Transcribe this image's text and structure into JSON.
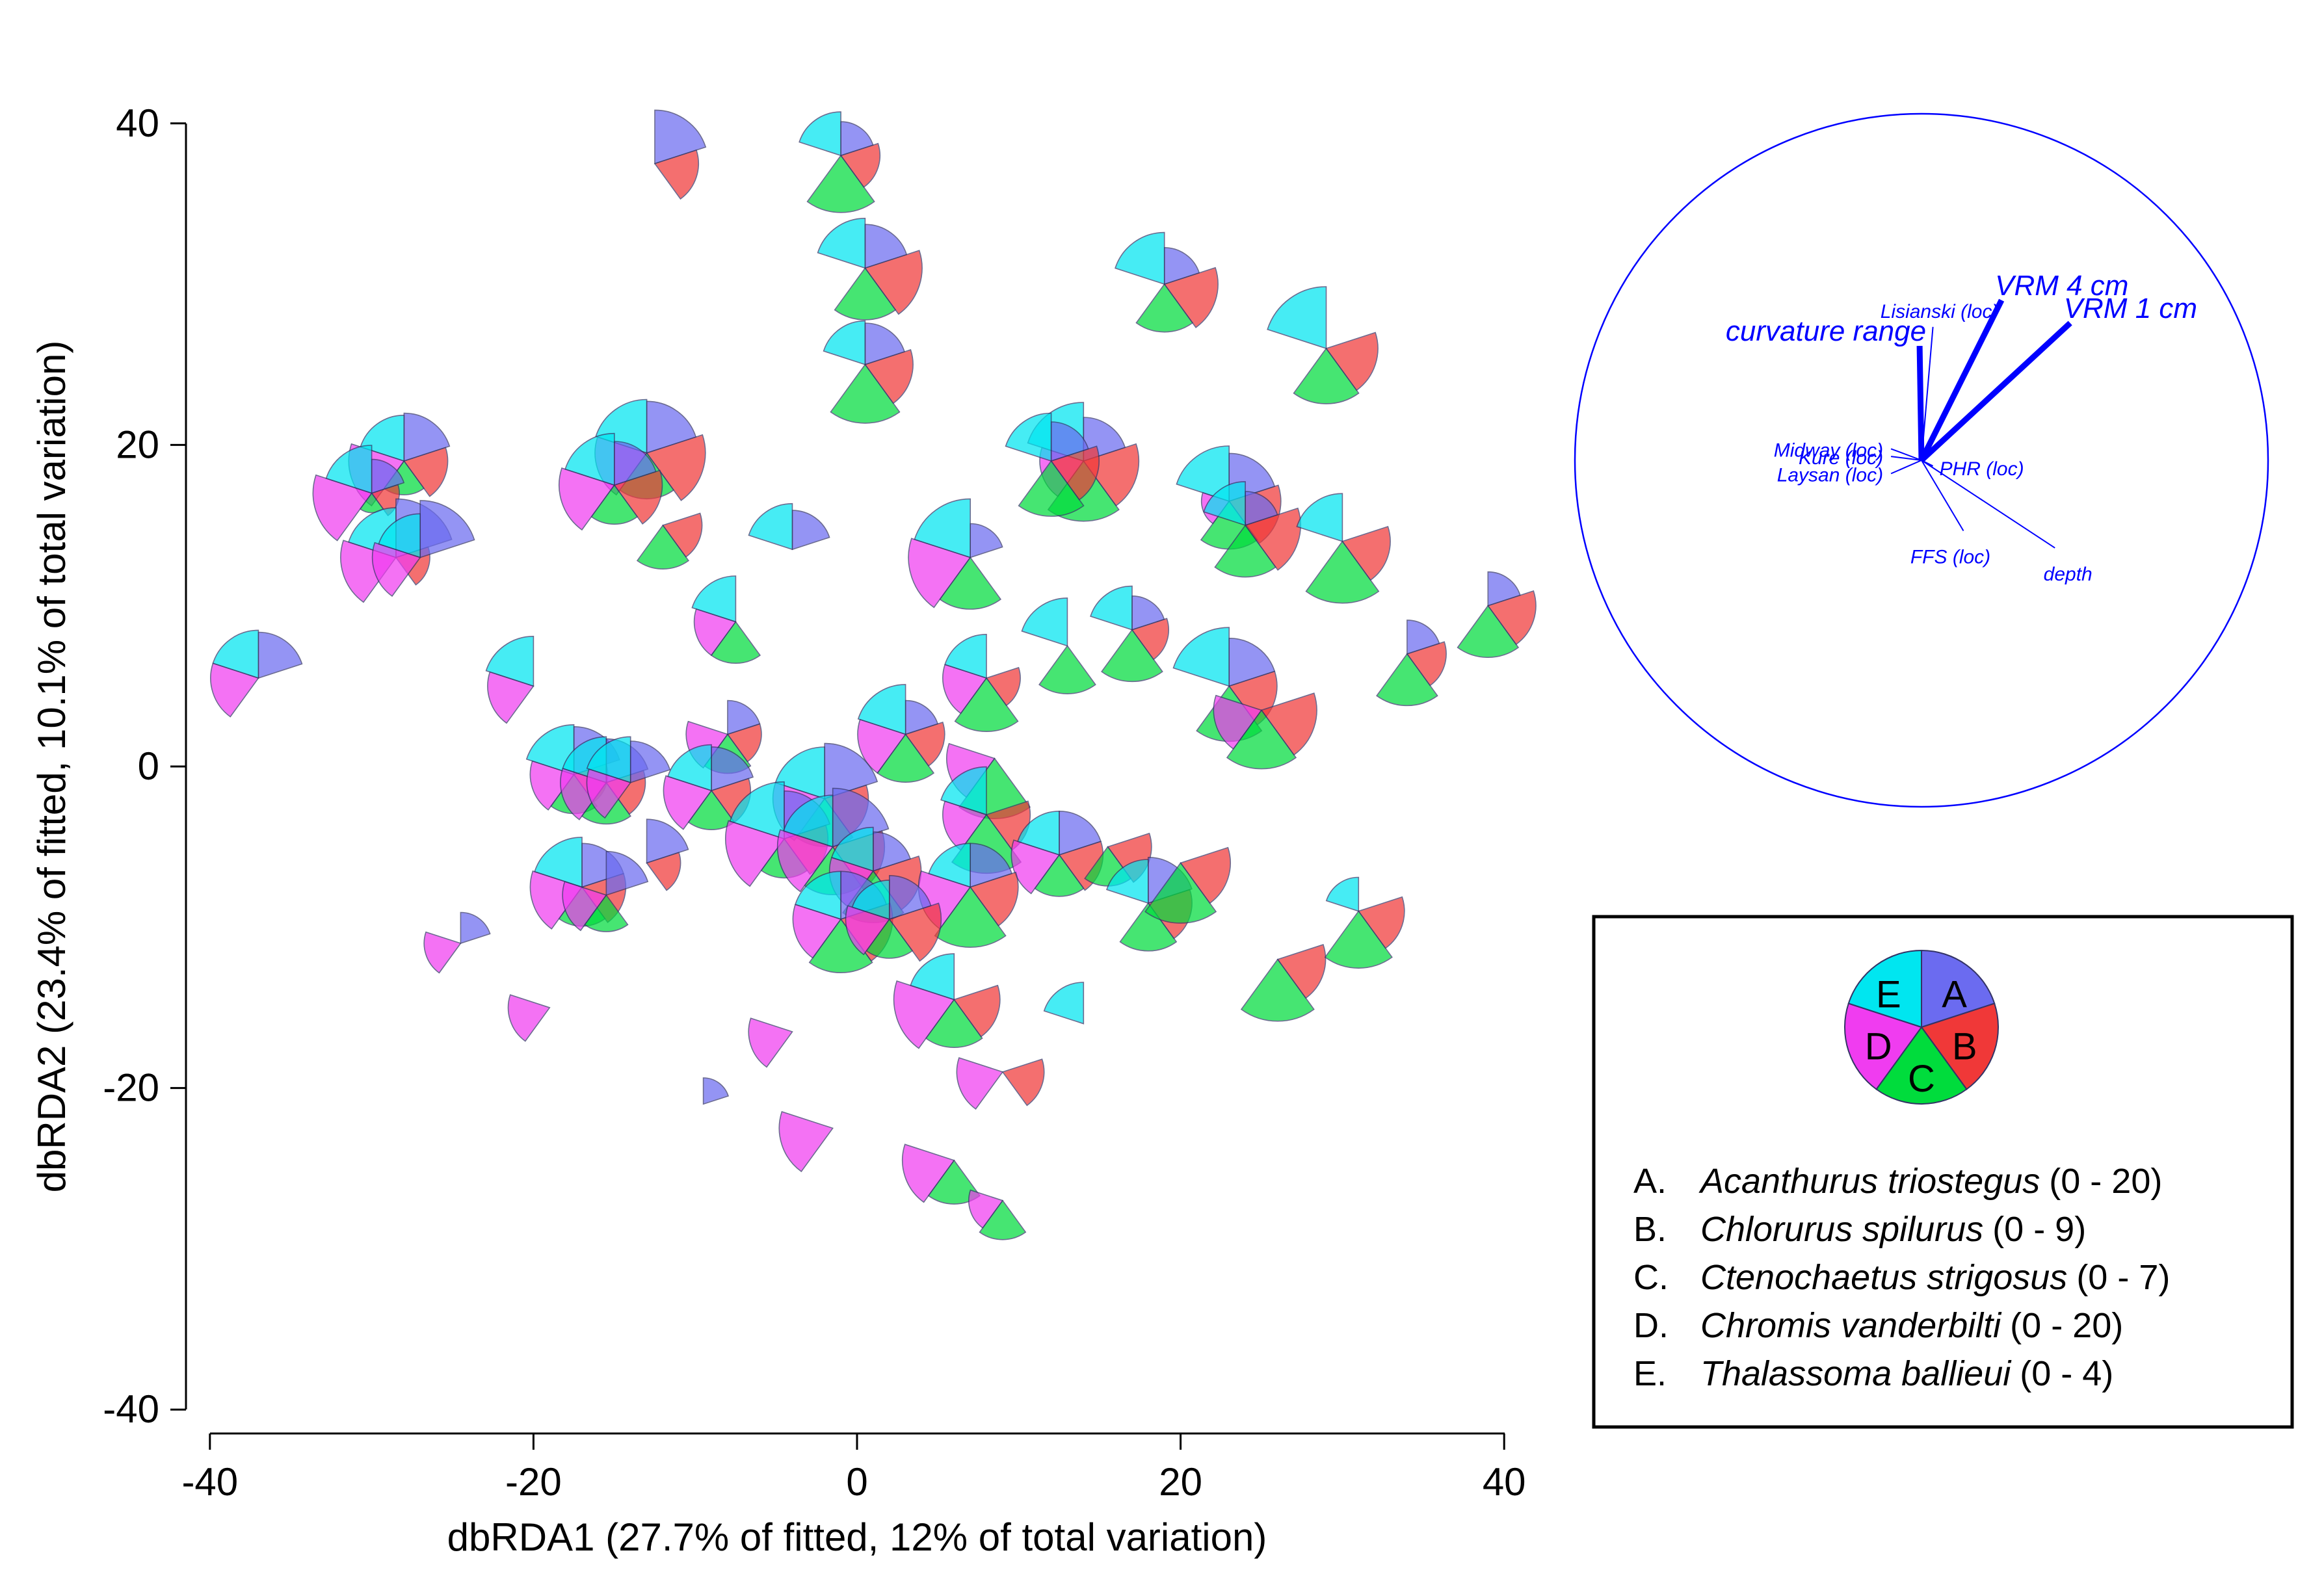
{
  "chart_data": {
    "type": "scatter",
    "subtype": "segmented-pie-glyphs",
    "xlabel": "dbRDA1 (27.7% of fitted, 12% of total variation)",
    "ylabel": "dbRDA2 (23.4% of fitted, 10.1% of total variation)",
    "xlim": [
      -40,
      40
    ],
    "ylim": [
      -40,
      40
    ],
    "xticks": [
      "-40",
      "-20",
      "0",
      "20",
      "40"
    ],
    "yticks": [
      "40",
      "20",
      "0",
      "-20",
      "-40"
    ],
    "species": [
      {
        "key": "A",
        "label_prefix": "A.",
        "name": "Acanthurus triostegus",
        "range": "(0 - 20)",
        "max": 20,
        "color": "#6b6bf0"
      },
      {
        "key": "B",
        "label_prefix": "B.",
        "name": "Chlorurus spilurus",
        "range": "(0 - 9)",
        "max": 9,
        "color": "#f03838"
      },
      {
        "key": "C",
        "label_prefix": "C.",
        "name": "Ctenochaetus strigosus",
        "range": "(0 - 7)",
        "max": 7,
        "color": "#00dc3c"
      },
      {
        "key": "D",
        "label_prefix": "D.",
        "name": "Chromis vanderbilti",
        "range": "(0 - 20)",
        "max": 20,
        "color": "#f03cf0"
      },
      {
        "key": "E",
        "label_prefix": "E.",
        "name": "Thalassoma ballieui",
        "range": "(0 - 4)",
        "max": 4,
        "color": "#00e6f0"
      }
    ],
    "segment_order": [
      "A",
      "B",
      "C",
      "D",
      "E"
    ],
    "samples": [
      {
        "x": -12.5,
        "y": 37.5,
        "v": [
          0.75,
          0.5,
          0,
          0,
          0
        ]
      },
      {
        "x": -1,
        "y": 38,
        "v": [
          0.3,
          0.4,
          0.85,
          0,
          0.5
        ]
      },
      {
        "x": 0.5,
        "y": 31,
        "v": [
          0.5,
          0.85,
          0.7,
          0,
          0.65
        ]
      },
      {
        "x": 0.5,
        "y": 25,
        "v": [
          0.45,
          0.6,
          0.9,
          0,
          0.5
        ]
      },
      {
        "x": 19,
        "y": 30,
        "v": [
          0.35,
          0.75,
          0.6,
          0,
          0.7
        ]
      },
      {
        "x": 29,
        "y": 26,
        "v": [
          0,
          0.7,
          0.8,
          0,
          1.0
        ]
      },
      {
        "x": -28,
        "y": 19,
        "v": [
          0.6,
          0.5,
          0.3,
          0.8,
          0.55
        ]
      },
      {
        "x": -30,
        "y": 17,
        "v": [
          0.3,
          0.2,
          0.1,
          0.9,
          0.6
        ]
      },
      {
        "x": -28.5,
        "y": 13,
        "v": [
          0.9,
          0.3,
          0,
          0.8,
          0.65
        ]
      },
      {
        "x": -27,
        "y": 13,
        "v": [
          0.85,
          0,
          0,
          0.6,
          0.5
        ]
      },
      {
        "x": -13,
        "y": 19.5,
        "v": [
          0.7,
          0.9,
          0.55,
          0.7,
          0.75
        ]
      },
      {
        "x": -15,
        "y": 17.5,
        "v": [
          0.5,
          0.6,
          0.4,
          0.8,
          0.7
        ]
      },
      {
        "x": -12,
        "y": 15,
        "v": [
          0,
          0.4,
          0.5,
          0,
          0
        ]
      },
      {
        "x": 14,
        "y": 19,
        "v": [
          0.5,
          0.8,
          0.95,
          0.5,
          0.9
        ]
      },
      {
        "x": 12,
        "y": 19,
        "v": [
          0.4,
          0.6,
          0.8,
          0,
          0.6
        ]
      },
      {
        "x": 23,
        "y": 16.5,
        "v": [
          0.6,
          0.7,
          0.6,
          0.2,
          0.8
        ]
      },
      {
        "x": 24,
        "y": 15,
        "v": [
          0.3,
          0.8,
          0.7,
          0,
          0.5
        ]
      },
      {
        "x": 30,
        "y": 14,
        "v": [
          0,
          0.6,
          1.0,
          0,
          0.6
        ]
      },
      {
        "x": -4,
        "y": 13.5,
        "v": [
          0.4,
          0,
          0,
          0,
          0.55
        ]
      },
      {
        "x": 7,
        "y": 13,
        "v": [
          0.3,
          0,
          0.7,
          1.0,
          0.9
        ]
      },
      {
        "x": -37,
        "y": 5.5,
        "v": [
          0.55,
          0,
          0,
          0.6,
          0.6
        ]
      },
      {
        "x": -20,
        "y": 5,
        "v": [
          0,
          0,
          0,
          0.55,
          0.65
        ]
      },
      {
        "x": -7.5,
        "y": 9,
        "v": [
          0,
          0,
          0.45,
          0.45,
          0.55
        ]
      },
      {
        "x": 13,
        "y": 7.5,
        "v": [
          0,
          0,
          0.6,
          0,
          0.6
        ]
      },
      {
        "x": 17,
        "y": 8.5,
        "v": [
          0.3,
          0.35,
          0.7,
          0,
          0.5
        ]
      },
      {
        "x": 8,
        "y": 5.5,
        "v": [
          0,
          0.3,
          0.75,
          0.5,
          0.5
        ]
      },
      {
        "x": 23,
        "y": 5,
        "v": [
          0.6,
          0.6,
          0.8,
          0,
          0.9
        ]
      },
      {
        "x": 25,
        "y": 3.5,
        "v": [
          0,
          0.8,
          0.9,
          0.6,
          0
        ]
      },
      {
        "x": 34,
        "y": 7,
        "v": [
          0.3,
          0.4,
          0.7,
          0,
          0
        ]
      },
      {
        "x": 39,
        "y": 10,
        "v": [
          0.3,
          0.6,
          0.7,
          0,
          0
        ]
      },
      {
        "x": 3,
        "y": 2,
        "v": [
          0.3,
          0.4,
          0.6,
          0.6,
          0.65
        ]
      },
      {
        "x": 8.5,
        "y": 0.5,
        "v": [
          0,
          0,
          0.95,
          0.6,
          0
        ]
      },
      {
        "x": -8,
        "y": 2,
        "v": [
          0.3,
          0.3,
          0.4,
          0.45,
          0
        ]
      },
      {
        "x": -17.5,
        "y": -0.5,
        "v": [
          0.6,
          0.3,
          0.4,
          0.5,
          0.65
        ]
      },
      {
        "x": -15.5,
        "y": -1,
        "v": [
          0.5,
          0.4,
          0.45,
          0.55,
          0.55
        ]
      },
      {
        "x": -14,
        "y": -1,
        "v": [
          0.45,
          0,
          0,
          0.5,
          0.55
        ]
      },
      {
        "x": -9,
        "y": -1.5,
        "v": [
          0.5,
          0.4,
          0.4,
          0.6,
          0.55
        ]
      },
      {
        "x": -2,
        "y": -2,
        "v": [
          0.8,
          0.5,
          0.6,
          0.7,
          0.7
        ]
      },
      {
        "x": -4.5,
        "y": -4.5,
        "v": [
          0.6,
          0.5,
          0.4,
          0.9,
          0.85
        ]
      },
      {
        "x": -1.5,
        "y": -5,
        "v": [
          0.9,
          0.7,
          0.6,
          0.8,
          0.7
        ]
      },
      {
        "x": 1,
        "y": -6.5,
        "v": [
          0.4,
          0.6,
          0.7,
          0.5,
          0.5
        ]
      },
      {
        "x": 8,
        "y": -3,
        "v": [
          0,
          0.5,
          0.9,
          0.5,
          0.6
        ]
      },
      {
        "x": 12.5,
        "y": -5.5,
        "v": [
          0.5,
          0.5,
          0.45,
          0.6,
          0.5
        ]
      },
      {
        "x": 15.5,
        "y": -5,
        "v": [
          0,
          0.5,
          0.4,
          0,
          0
        ]
      },
      {
        "x": 7,
        "y": -7.5,
        "v": [
          0.5,
          0.6,
          0.95,
          0.7,
          0.5
        ]
      },
      {
        "x": -1,
        "y": -9.5,
        "v": [
          0.6,
          0.7,
          0.75,
          0.6,
          0.6
        ]
      },
      {
        "x": 2,
        "y": -9.5,
        "v": [
          0.5,
          0.7,
          0.4,
          0.5,
          0.4
        ]
      },
      {
        "x": -17,
        "y": -7.5,
        "v": [
          0.5,
          0.5,
          0.4,
          0.7,
          0.65
        ]
      },
      {
        "x": -15.5,
        "y": -8,
        "v": [
          0.5,
          0,
          0.35,
          0.5,
          0
        ]
      },
      {
        "x": -13,
        "y": -6,
        "v": [
          0.5,
          0.3,
          0,
          0,
          0
        ]
      },
      {
        "x": 18,
        "y": -8.5,
        "v": [
          0.55,
          0.5,
          0.6,
          0,
          0.5
        ]
      },
      {
        "x": 20,
        "y": -6,
        "v": [
          0,
          0.65,
          0.95,
          0,
          0
        ]
      },
      {
        "x": 26,
        "y": -12,
        "v": [
          0,
          0.6,
          1.0,
          0,
          0
        ]
      },
      {
        "x": 31,
        "y": -9,
        "v": [
          0,
          0.55,
          0.85,
          0,
          0.3
        ]
      },
      {
        "x": -24.5,
        "y": -11,
        "v": [
          0.25,
          0,
          0,
          0.35,
          0
        ]
      },
      {
        "x": -19,
        "y": -15,
        "v": [
          0,
          0,
          0,
          0.45,
          0
        ]
      },
      {
        "x": 6,
        "y": -14.5,
        "v": [
          0,
          0.55,
          0.6,
          0.95,
          0.55
        ]
      },
      {
        "x": 14,
        "y": -16,
        "v": [
          0,
          0,
          0,
          0,
          0.45
        ]
      },
      {
        "x": -4,
        "y": -16.5,
        "v": [
          0,
          0,
          0,
          0.5,
          0
        ]
      },
      {
        "x": -9.5,
        "y": -21,
        "v": [
          0.18,
          0,
          0,
          0,
          0
        ]
      },
      {
        "x": 9,
        "y": -19,
        "v": [
          0,
          0.45,
          0,
          0.55,
          0
        ]
      },
      {
        "x": -1.5,
        "y": -22.5,
        "v": [
          0,
          0,
          0,
          0.75,
          0
        ]
      },
      {
        "x": 6,
        "y": -24.5,
        "v": [
          0,
          0,
          0.5,
          0.7,
          0
        ]
      },
      {
        "x": 9,
        "y": -27,
        "v": [
          0,
          0,
          0.4,
          0.3,
          0
        ]
      }
    ],
    "vector_plot": {
      "circle_radius": 1.0,
      "vectors": [
        {
          "label": "curvature range",
          "dx": -0.01,
          "dy": 0.6,
          "emphasis": true
        },
        {
          "label": "VRM 4 cm",
          "dx": 0.42,
          "dy": 0.84,
          "emphasis": true
        },
        {
          "label": "VRM 1 cm",
          "dx": 0.78,
          "dy": 0.72,
          "emphasis": true
        },
        {
          "label": "Lisianski (loc)",
          "dx": 0.06,
          "dy": 0.7,
          "emphasis": false
        },
        {
          "label": "Midway (loc)",
          "dx": -0.16,
          "dy": 0.06,
          "emphasis": false
        },
        {
          "label": "Kure (loc)",
          "dx": -0.16,
          "dy": 0.02,
          "emphasis": false
        },
        {
          "label": "Laysan (loc)",
          "dx": -0.16,
          "dy": -0.07,
          "emphasis": false
        },
        {
          "label": "PHR (loc)",
          "dx": 0.06,
          "dy": -0.03,
          "emphasis": false
        },
        {
          "label": "FFS (loc)",
          "dx": 0.22,
          "dy": -0.37,
          "emphasis": false
        },
        {
          "label": "depth",
          "dx": 0.7,
          "dy": -0.46,
          "emphasis": false
        }
      ]
    }
  }
}
